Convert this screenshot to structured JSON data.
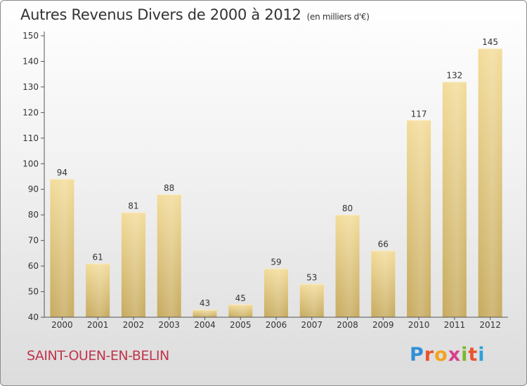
{
  "title": "Autres Revenus Divers de 2000 à 2012",
  "unit": "(en milliers d'€)",
  "commune": "SAINT-OUEN-EN-BELIN",
  "brand": {
    "letters": [
      "P",
      "r",
      "o",
      "x",
      "i",
      "t",
      "i"
    ]
  },
  "colors": {
    "bar_light": "#f3dc9a",
    "bar_dark": "#c6aa5e",
    "axis": "#555555",
    "grid": "#d8d8d8",
    "commune": "#c0354a"
  },
  "chart_data": {
    "type": "bar",
    "categories": [
      "2000",
      "2001",
      "2002",
      "2003",
      "2004",
      "2005",
      "2006",
      "2007",
      "2008",
      "2009",
      "2010",
      "2011",
      "2012"
    ],
    "values": [
      94,
      61,
      81,
      88,
      43,
      45,
      59,
      53,
      80,
      66,
      117,
      132,
      145
    ],
    "ylim": [
      40,
      150
    ],
    "yticks": [
      40,
      50,
      60,
      70,
      80,
      90,
      100,
      110,
      120,
      130,
      140,
      150
    ],
    "data_labels": true,
    "grid": false
  }
}
